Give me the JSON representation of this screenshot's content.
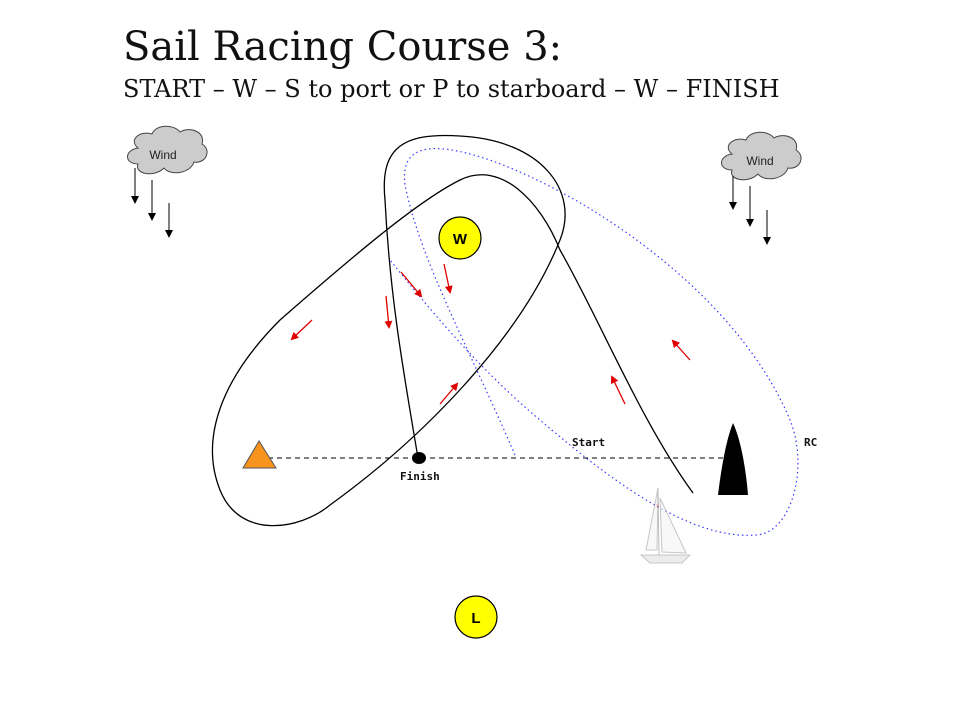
{
  "header": {
    "title": "Sail Racing Course 3:",
    "subtitle": "START – W – S to port or P to starboard – W – FINISH"
  },
  "wind": {
    "left_label": "Wind",
    "right_label": "Wind"
  },
  "marks": {
    "windward": "W",
    "leeward": "L",
    "start_label": "Start",
    "finish_label": "Finish",
    "committee_boat": "RC"
  },
  "colors": {
    "mark_yellow": "#ffff00",
    "pin_orange": "#f7941d",
    "arrow_red": "#e00000",
    "alt_route_blue": "#3a3aff",
    "cloud_gray": "#cccccc"
  },
  "icons": [
    "cloud-icon",
    "wind-arrow-icon",
    "triangle-pin-icon",
    "committee-boat-icon",
    "sailboat-icon"
  ]
}
